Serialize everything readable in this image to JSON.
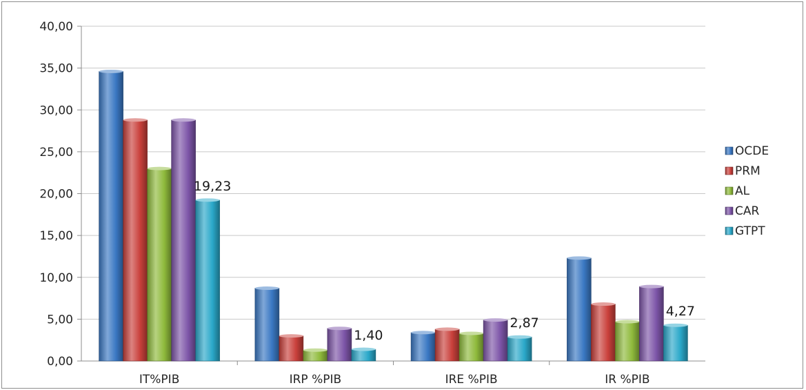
{
  "chart_data": {
    "type": "bar",
    "categories": [
      "IT%PIB",
      "IRP %PIB",
      "IRE %PIB",
      "IR %PIB"
    ],
    "series": [
      {
        "name": "OCDE",
        "color": "#3a78c3",
        "values": [
          34.6,
          8.7,
          3.4,
          12.3
        ]
      },
      {
        "name": "PRM",
        "color": "#c9403b",
        "values": [
          28.8,
          3.0,
          3.8,
          6.8
        ]
      },
      {
        "name": "AL",
        "color": "#8fba3c",
        "values": [
          23.0,
          1.3,
          3.3,
          4.7
        ]
      },
      {
        "name": "CAR",
        "color": "#7d55a8",
        "values": [
          28.8,
          3.9,
          4.9,
          8.9
        ]
      },
      {
        "name": "GTPT",
        "color": "#2aa8c9",
        "values": [
          19.23,
          1.4,
          2.87,
          4.27
        ]
      }
    ],
    "data_labels": [
      {
        "series": "GTPT",
        "category": "IT%PIB",
        "text": "19,23"
      },
      {
        "series": "GTPT",
        "category": "IRP %PIB",
        "text": "1,40"
      },
      {
        "series": "GTPT",
        "category": "IRE %PIB",
        "text": "2,87"
      },
      {
        "series": "GTPT",
        "category": "IR %PIB",
        "text": "4,27"
      }
    ],
    "ylim": [
      0,
      40
    ],
    "yticks": [
      "0,00",
      "5,00",
      "10,00",
      "15,00",
      "20,00",
      "25,00",
      "30,00",
      "35,00",
      "40,00"
    ],
    "ytick_values": [
      0,
      5,
      10,
      15,
      20,
      25,
      30,
      35,
      40
    ],
    "grid": true,
    "legend_position": "right"
  }
}
